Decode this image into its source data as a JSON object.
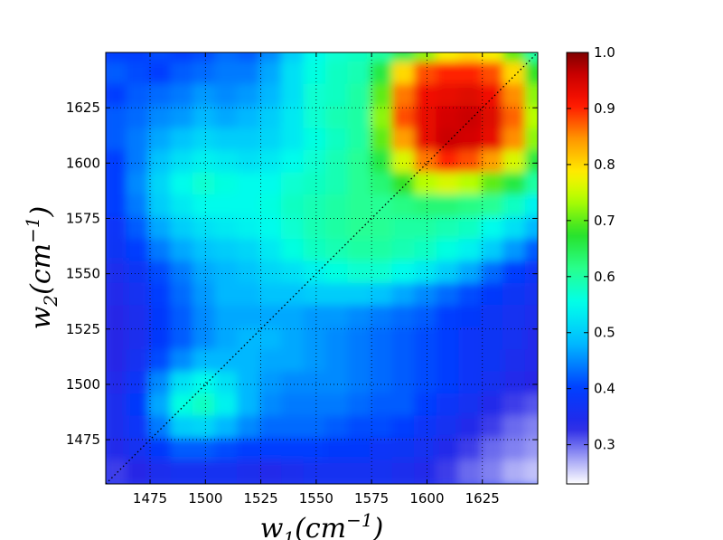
{
  "chart_data": {
    "type": "heatmap",
    "title": "",
    "xlabel": {
      "base": "w",
      "sub": "1",
      "open": "(cm",
      "sup": "−1",
      "close": ")"
    },
    "ylabel": {
      "base": "w",
      "sub": "2",
      "open": "(cm",
      "sup": "−1",
      "close": ")"
    },
    "xlim": [
      1455,
      1650
    ],
    "ylim": [
      1455,
      1650
    ],
    "xticks": [
      1475,
      1500,
      1525,
      1550,
      1575,
      1600,
      1625
    ],
    "yticks": [
      1475,
      1500,
      1525,
      1550,
      1575,
      1600,
      1625
    ],
    "grid": true,
    "diagonal_line": true,
    "colormap": "jet",
    "colorbar": {
      "min": 0.23,
      "max": 1.0,
      "ticks": [
        "0.3",
        "0.4",
        "0.5",
        "0.6",
        "0.7",
        "0.8",
        "0.9",
        "1.0"
      ],
      "tick_values": [
        0.3,
        0.4,
        0.5,
        0.6,
        0.7,
        0.8,
        0.9,
        1.0
      ],
      "placement": "right"
    },
    "grid_x": [
      1460,
      1470,
      1480,
      1490,
      1500,
      1510,
      1520,
      1530,
      1540,
      1550,
      1560,
      1570,
      1580,
      1590,
      1600,
      1610,
      1620,
      1630,
      1640,
      1650
    ],
    "grid_y": [
      1650,
      1640,
      1630,
      1620,
      1610,
      1600,
      1590,
      1580,
      1570,
      1560,
      1550,
      1540,
      1530,
      1520,
      1510,
      1500,
      1490,
      1480,
      1470,
      1460
    ],
    "values": [
      [
        0.4,
        0.4,
        0.41,
        0.4,
        0.41,
        0.43,
        0.42,
        0.45,
        0.5,
        0.55,
        0.57,
        0.58,
        0.6,
        0.65,
        0.72,
        0.78,
        0.8,
        0.78,
        0.7,
        0.6
      ],
      [
        0.42,
        0.41,
        0.4,
        0.42,
        0.43,
        0.44,
        0.44,
        0.47,
        0.52,
        0.56,
        0.58,
        0.59,
        0.66,
        0.8,
        0.88,
        0.9,
        0.9,
        0.88,
        0.8,
        0.68
      ],
      [
        0.4,
        0.42,
        0.43,
        0.44,
        0.46,
        0.45,
        0.46,
        0.48,
        0.52,
        0.57,
        0.58,
        0.6,
        0.7,
        0.86,
        0.92,
        0.93,
        0.94,
        0.92,
        0.85,
        0.72
      ],
      [
        0.42,
        0.43,
        0.45,
        0.46,
        0.48,
        0.47,
        0.48,
        0.5,
        0.53,
        0.57,
        0.59,
        0.6,
        0.72,
        0.88,
        0.93,
        0.95,
        0.96,
        0.94,
        0.87,
        0.74
      ],
      [
        0.42,
        0.44,
        0.47,
        0.49,
        0.51,
        0.5,
        0.5,
        0.51,
        0.53,
        0.56,
        0.58,
        0.6,
        0.7,
        0.84,
        0.93,
        0.96,
        0.95,
        0.93,
        0.85,
        0.72
      ],
      [
        0.4,
        0.44,
        0.49,
        0.52,
        0.54,
        0.53,
        0.52,
        0.53,
        0.55,
        0.57,
        0.59,
        0.61,
        0.66,
        0.76,
        0.86,
        0.9,
        0.88,
        0.84,
        0.76,
        0.66
      ],
      [
        0.4,
        0.45,
        0.51,
        0.55,
        0.57,
        0.56,
        0.55,
        0.55,
        0.57,
        0.58,
        0.59,
        0.61,
        0.63,
        0.68,
        0.74,
        0.76,
        0.74,
        0.7,
        0.66,
        0.6
      ],
      [
        0.4,
        0.44,
        0.5,
        0.53,
        0.55,
        0.55,
        0.55,
        0.56,
        0.58,
        0.59,
        0.6,
        0.61,
        0.61,
        0.62,
        0.63,
        0.63,
        0.62,
        0.61,
        0.58,
        0.54
      ],
      [
        0.38,
        0.42,
        0.47,
        0.5,
        0.52,
        0.53,
        0.54,
        0.55,
        0.57,
        0.59,
        0.6,
        0.61,
        0.61,
        0.6,
        0.6,
        0.59,
        0.58,
        0.55,
        0.52,
        0.48
      ],
      [
        0.37,
        0.4,
        0.44,
        0.47,
        0.49,
        0.5,
        0.51,
        0.53,
        0.56,
        0.58,
        0.59,
        0.6,
        0.6,
        0.59,
        0.58,
        0.56,
        0.54,
        0.5,
        0.46,
        0.42
      ],
      [
        0.35,
        0.37,
        0.41,
        0.44,
        0.47,
        0.48,
        0.49,
        0.51,
        0.52,
        0.54,
        0.56,
        0.57,
        0.57,
        0.55,
        0.53,
        0.5,
        0.47,
        0.43,
        0.4,
        0.38
      ],
      [
        0.34,
        0.36,
        0.4,
        0.43,
        0.46,
        0.48,
        0.48,
        0.49,
        0.49,
        0.5,
        0.5,
        0.5,
        0.49,
        0.47,
        0.45,
        0.43,
        0.41,
        0.39,
        0.37,
        0.36
      ],
      [
        0.33,
        0.35,
        0.39,
        0.42,
        0.45,
        0.47,
        0.47,
        0.47,
        0.47,
        0.46,
        0.46,
        0.45,
        0.44,
        0.43,
        0.42,
        0.4,
        0.39,
        0.37,
        0.36,
        0.35
      ],
      [
        0.33,
        0.35,
        0.39,
        0.42,
        0.45,
        0.47,
        0.48,
        0.48,
        0.47,
        0.46,
        0.45,
        0.44,
        0.43,
        0.42,
        0.41,
        0.4,
        0.38,
        0.37,
        0.36,
        0.34
      ],
      [
        0.33,
        0.36,
        0.41,
        0.45,
        0.48,
        0.48,
        0.48,
        0.47,
        0.47,
        0.46,
        0.45,
        0.44,
        0.43,
        0.42,
        0.41,
        0.4,
        0.38,
        0.37,
        0.35,
        0.34
      ],
      [
        0.34,
        0.38,
        0.45,
        0.52,
        0.55,
        0.52,
        0.48,
        0.46,
        0.45,
        0.45,
        0.45,
        0.44,
        0.43,
        0.42,
        0.41,
        0.4,
        0.38,
        0.36,
        0.34,
        0.33
      ],
      [
        0.35,
        0.39,
        0.47,
        0.56,
        0.58,
        0.54,
        0.48,
        0.45,
        0.44,
        0.44,
        0.44,
        0.43,
        0.42,
        0.42,
        0.4,
        0.38,
        0.36,
        0.34,
        0.32,
        0.31
      ],
      [
        0.35,
        0.38,
        0.44,
        0.5,
        0.51,
        0.48,
        0.45,
        0.43,
        0.43,
        0.43,
        0.42,
        0.41,
        0.41,
        0.4,
        0.38,
        0.36,
        0.34,
        0.32,
        0.3,
        0.29
      ],
      [
        0.34,
        0.36,
        0.39,
        0.42,
        0.42,
        0.41,
        0.4,
        0.4,
        0.4,
        0.4,
        0.39,
        0.39,
        0.38,
        0.37,
        0.36,
        0.34,
        0.32,
        0.3,
        0.29,
        0.28
      ],
      [
        0.32,
        0.33,
        0.35,
        0.36,
        0.36,
        0.36,
        0.35,
        0.34,
        0.35,
        0.36,
        0.36,
        0.36,
        0.36,
        0.35,
        0.34,
        0.32,
        0.3,
        0.29,
        0.27,
        0.26
      ]
    ]
  }
}
